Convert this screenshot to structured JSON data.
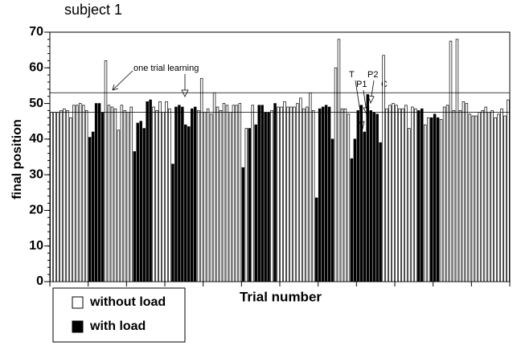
{
  "chart_data": {
    "type": "bar",
    "title": "subject 1",
    "xlabel": "Trial number",
    "ylabel": "final position",
    "ylim": [
      0,
      70
    ],
    "yticks": [
      0,
      10,
      20,
      30,
      40,
      50,
      60,
      70
    ],
    "reference_lines": [
      53,
      47.5
    ],
    "annotations": [
      "one trial learning",
      "T",
      "P1",
      "P2",
      "C"
    ],
    "series": [
      {
        "name": "without load",
        "color": "#ffffff",
        "values": [
          47.5,
          47.5,
          47.5,
          48,
          48.5,
          48,
          46,
          49.5,
          49.5,
          50,
          49.5,
          48,
          null,
          null,
          null,
          null,
          null,
          62,
          49.5,
          49,
          48.5,
          42.5,
          49.5,
          48,
          47.5,
          49,
          null,
          null,
          null,
          null,
          null,
          null,
          49,
          48,
          50.5,
          47.5,
          50.5,
          48.5,
          null,
          null,
          null,
          null,
          null,
          null,
          null,
          null,
          48,
          57,
          47.5,
          48.5,
          47,
          53,
          49,
          48,
          50,
          49.5,
          47.5,
          49.5,
          49.5,
          50,
          null,
          43,
          null,
          49.5,
          null,
          null,
          null,
          null,
          null,
          48,
          null,
          49,
          49,
          50.5,
          49,
          49,
          49,
          50,
          51.5,
          48.5,
          49,
          53,
          48,
          null,
          null,
          null,
          null,
          null,
          null,
          60,
          68,
          48.5,
          48.5,
          47,
          null,
          null,
          null,
          null,
          null,
          null,
          null,
          null,
          null,
          null,
          63.5,
          48.5,
          49.5,
          50,
          49.5,
          48.5,
          48.5,
          49.5,
          43,
          49,
          48.5,
          null,
          null,
          44,
          46,
          null,
          null,
          null,
          45.5,
          49,
          49.5,
          67.5,
          48,
          68,
          48,
          50.5,
          50,
          47,
          46.5,
          46.5,
          47.5,
          48,
          49,
          47.5,
          48,
          46,
          47,
          48.5,
          46.5,
          51
        ]
      },
      {
        "name": "with load",
        "color": "#000000",
        "values": [
          null,
          null,
          null,
          null,
          null,
          null,
          null,
          null,
          null,
          null,
          null,
          null,
          40.5,
          42,
          50,
          50,
          47.5,
          null,
          null,
          null,
          null,
          null,
          null,
          null,
          null,
          null,
          36.5,
          44.5,
          45,
          43,
          50.5,
          51,
          null,
          null,
          null,
          null,
          null,
          null,
          33,
          49,
          49.5,
          49,
          44,
          43.5,
          48.5,
          49,
          null,
          null,
          null,
          null,
          null,
          null,
          null,
          null,
          null,
          null,
          null,
          null,
          null,
          null,
          32,
          null,
          43,
          null,
          44,
          49.5,
          49.5,
          47.5,
          47.5,
          null,
          50,
          null,
          null,
          null,
          null,
          null,
          null,
          null,
          null,
          null,
          null,
          null,
          null,
          23.5,
          48.5,
          49,
          49.5,
          49,
          40,
          null,
          null,
          null,
          null,
          null,
          34.5,
          40,
          48,
          49.5,
          42,
          52.5,
          48,
          47.5,
          47,
          39,
          null,
          null,
          null,
          null,
          null,
          null,
          null,
          null,
          null,
          null,
          null,
          48,
          48.5,
          null,
          null,
          46,
          47,
          46,
          null,
          null,
          null,
          null,
          null,
          null,
          null,
          null,
          null,
          null,
          null,
          null,
          null,
          null,
          null,
          null,
          null,
          null,
          null,
          null,
          null,
          null
        ]
      }
    ]
  }
}
